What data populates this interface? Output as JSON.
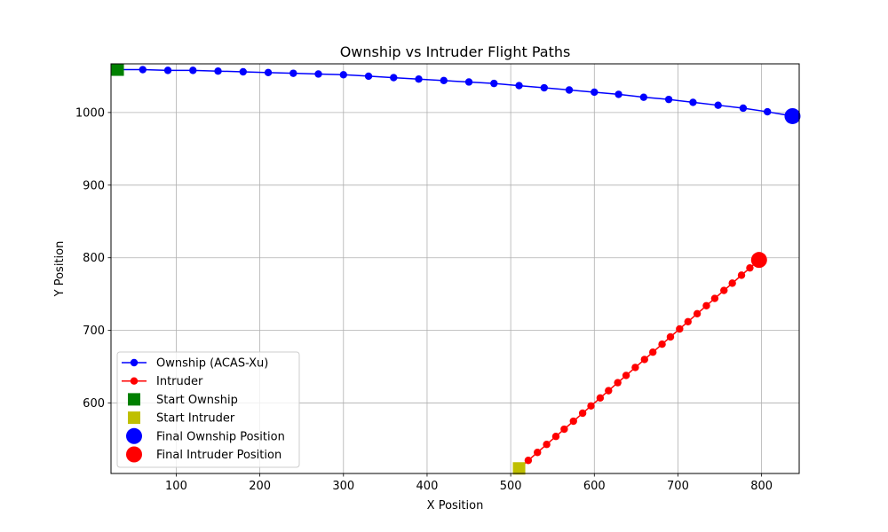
{
  "chart_data": {
    "type": "line",
    "title": "Ownship vs Intruder Flight Paths",
    "xlabel": "X Position",
    "ylabel": "Y Position",
    "xlim": [
      22,
      845
    ],
    "ylim": [
      503,
      1067
    ],
    "xticks": [
      100,
      200,
      300,
      400,
      500,
      600,
      700,
      800
    ],
    "yticks": [
      600,
      700,
      800,
      900,
      1000
    ],
    "grid": true,
    "legend_position": "lower-left",
    "series": [
      {
        "name": "Ownship (ACAS-Xu)",
        "color": "#0000ff",
        "marker": "circle",
        "x": [
          30,
          60,
          90,
          120,
          150,
          180,
          210,
          240,
          270,
          300,
          330,
          360,
          390,
          420,
          450,
          480,
          510,
          540,
          570,
          600,
          629,
          659,
          689,
          718,
          748,
          778,
          807,
          837
        ],
        "y": [
          1059,
          1059,
          1058,
          1058,
          1057,
          1056,
          1055,
          1054,
          1053,
          1052,
          1050,
          1048,
          1046,
          1044,
          1042,
          1040,
          1037,
          1034,
          1031,
          1028,
          1025,
          1021,
          1018,
          1014,
          1010,
          1006,
          1001,
          995
        ]
      },
      {
        "name": "Intruder",
        "color": "#ff0000",
        "marker": "circle",
        "x": [
          510,
          521,
          532,
          543,
          554,
          564,
          575,
          586,
          596,
          607,
          617,
          628,
          638,
          649,
          660,
          670,
          681,
          691,
          702,
          712,
          723,
          734,
          744,
          755,
          765,
          776,
          786,
          797
        ],
        "y": [
          510,
          521,
          532,
          543,
          554,
          564,
          575,
          586,
          596,
          607,
          617,
          628,
          638,
          649,
          660,
          670,
          681,
          691,
          702,
          712,
          723,
          734,
          744,
          755,
          765,
          776,
          786,
          797
        ]
      }
    ],
    "markers": [
      {
        "name": "Start Ownship",
        "shape": "square",
        "color": "#008000",
        "x": 30,
        "y": 1059
      },
      {
        "name": "Start Intruder",
        "shape": "square",
        "color": "#bfbf00",
        "x": 510,
        "y": 510
      },
      {
        "name": "Final Ownship Position",
        "shape": "circle",
        "color": "#0000ff",
        "x": 837,
        "y": 995
      },
      {
        "name": "Final Intruder Position",
        "shape": "circle",
        "color": "#ff0000",
        "x": 797,
        "y": 797
      }
    ]
  }
}
